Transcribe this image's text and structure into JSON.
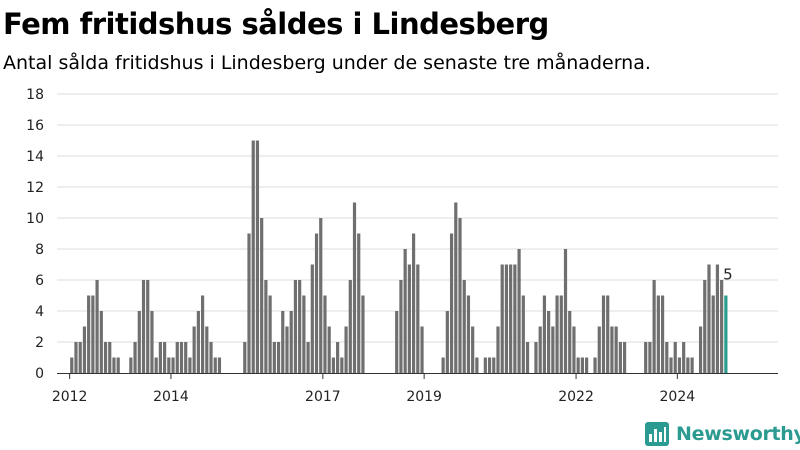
{
  "header": {
    "title": "Fem fritidshus såldes i Lindesberg",
    "subtitle": "Antal sålda fritidshus i Lindesberg under de senaste tre månaderna."
  },
  "brand": {
    "name": "Newsworthy",
    "icon": "newsworthy-logo-icon",
    "color": "#2b9b91"
  },
  "colors": {
    "bar": "#6f6f6f",
    "highlight": "#2a9d8f",
    "grid": "#dddddd",
    "axis": "#333333"
  },
  "chart_data": {
    "type": "bar",
    "title": "Fem fritidshus såldes i Lindesberg",
    "subtitle": "Antal sålda fritidshus i Lindesberg under de senaste tre månaderna.",
    "xlabel": "",
    "ylabel": "",
    "ylim": [
      0,
      18
    ],
    "yticks": [
      0,
      2,
      4,
      6,
      8,
      10,
      12,
      14,
      16,
      18
    ],
    "grid": true,
    "x_start": "2011-10",
    "x_end": "2025-02",
    "xticks": [
      {
        "label": "2012",
        "x": "2012-01"
      },
      {
        "label": "2014",
        "x": "2014-01"
      },
      {
        "label": "2017",
        "x": "2017-01"
      },
      {
        "label": "2019",
        "x": "2019-01"
      },
      {
        "label": "2022",
        "x": "2022-01"
      },
      {
        "label": "2024",
        "x": "2024-01"
      }
    ],
    "series": [
      {
        "values": [
          {
            "x": "2012-01",
            "y": 1
          },
          {
            "x": "2012-02",
            "y": 2
          },
          {
            "x": "2012-03",
            "y": 2
          },
          {
            "x": "2012-04",
            "y": 3
          },
          {
            "x": "2012-05",
            "y": 5
          },
          {
            "x": "2012-06",
            "y": 5
          },
          {
            "x": "2012-07",
            "y": 6
          },
          {
            "x": "2012-08",
            "y": 4
          },
          {
            "x": "2012-09",
            "y": 2
          },
          {
            "x": "2012-10",
            "y": 2
          },
          {
            "x": "2012-11",
            "y": 1
          },
          {
            "x": "2012-12",
            "y": 1
          },
          {
            "x": "2013-03",
            "y": 1
          },
          {
            "x": "2013-04",
            "y": 2
          },
          {
            "x": "2013-05",
            "y": 4
          },
          {
            "x": "2013-06",
            "y": 6
          },
          {
            "x": "2013-07",
            "y": 6
          },
          {
            "x": "2013-08",
            "y": 4
          },
          {
            "x": "2013-09",
            "y": 1
          },
          {
            "x": "2013-10",
            "y": 2
          },
          {
            "x": "2013-11",
            "y": 2
          },
          {
            "x": "2013-12",
            "y": 1
          },
          {
            "x": "2014-01",
            "y": 1
          },
          {
            "x": "2014-02",
            "y": 2
          },
          {
            "x": "2014-03",
            "y": 2
          },
          {
            "x": "2014-04",
            "y": 2
          },
          {
            "x": "2014-05",
            "y": 1
          },
          {
            "x": "2014-06",
            "y": 3
          },
          {
            "x": "2014-07",
            "y": 4
          },
          {
            "x": "2014-08",
            "y": 5
          },
          {
            "x": "2014-09",
            "y": 3
          },
          {
            "x": "2014-10",
            "y": 2
          },
          {
            "x": "2014-11",
            "y": 1
          },
          {
            "x": "2014-12",
            "y": 1
          },
          {
            "x": "2015-06",
            "y": 2
          },
          {
            "x": "2015-07",
            "y": 9
          },
          {
            "x": "2015-08",
            "y": 15
          },
          {
            "x": "2015-09",
            "y": 15
          },
          {
            "x": "2015-10",
            "y": 10
          },
          {
            "x": "2015-11",
            "y": 6
          },
          {
            "x": "2015-12",
            "y": 5
          },
          {
            "x": "2016-01",
            "y": 2
          },
          {
            "x": "2016-02",
            "y": 2
          },
          {
            "x": "2016-03",
            "y": 4
          },
          {
            "x": "2016-04",
            "y": 3
          },
          {
            "x": "2016-05",
            "y": 4
          },
          {
            "x": "2016-06",
            "y": 6
          },
          {
            "x": "2016-07",
            "y": 6
          },
          {
            "x": "2016-08",
            "y": 5
          },
          {
            "x": "2016-09",
            "y": 2
          },
          {
            "x": "2016-10",
            "y": 7
          },
          {
            "x": "2016-11",
            "y": 9
          },
          {
            "x": "2016-12",
            "y": 10
          },
          {
            "x": "2017-01",
            "y": 5
          },
          {
            "x": "2017-02",
            "y": 3
          },
          {
            "x": "2017-03",
            "y": 1
          },
          {
            "x": "2017-04",
            "y": 2
          },
          {
            "x": "2017-05",
            "y": 1
          },
          {
            "x": "2017-06",
            "y": 3
          },
          {
            "x": "2017-07",
            "y": 6
          },
          {
            "x": "2017-08",
            "y": 11
          },
          {
            "x": "2017-09",
            "y": 9
          },
          {
            "x": "2017-10",
            "y": 5
          },
          {
            "x": "2018-06",
            "y": 4
          },
          {
            "x": "2018-07",
            "y": 6
          },
          {
            "x": "2018-08",
            "y": 8
          },
          {
            "x": "2018-09",
            "y": 7
          },
          {
            "x": "2018-10",
            "y": 9
          },
          {
            "x": "2018-11",
            "y": 7
          },
          {
            "x": "2018-12",
            "y": 3
          },
          {
            "x": "2019-05",
            "y": 1
          },
          {
            "x": "2019-06",
            "y": 4
          },
          {
            "x": "2019-07",
            "y": 9
          },
          {
            "x": "2019-08",
            "y": 11
          },
          {
            "x": "2019-09",
            "y": 10
          },
          {
            "x": "2019-10",
            "y": 6
          },
          {
            "x": "2019-11",
            "y": 5
          },
          {
            "x": "2019-12",
            "y": 3
          },
          {
            "x": "2020-01",
            "y": 1
          },
          {
            "x": "2020-03",
            "y": 1
          },
          {
            "x": "2020-04",
            "y": 1
          },
          {
            "x": "2020-05",
            "y": 1
          },
          {
            "x": "2020-06",
            "y": 3
          },
          {
            "x": "2020-07",
            "y": 7
          },
          {
            "x": "2020-08",
            "y": 7
          },
          {
            "x": "2020-09",
            "y": 7
          },
          {
            "x": "2020-10",
            "y": 7
          },
          {
            "x": "2020-11",
            "y": 8
          },
          {
            "x": "2020-12",
            "y": 5
          },
          {
            "x": "2021-01",
            "y": 2
          },
          {
            "x": "2021-03",
            "y": 2
          },
          {
            "x": "2021-04",
            "y": 3
          },
          {
            "x": "2021-05",
            "y": 5
          },
          {
            "x": "2021-06",
            "y": 4
          },
          {
            "x": "2021-07",
            "y": 3
          },
          {
            "x": "2021-08",
            "y": 5
          },
          {
            "x": "2021-09",
            "y": 5
          },
          {
            "x": "2021-10",
            "y": 8
          },
          {
            "x": "2021-11",
            "y": 4
          },
          {
            "x": "2021-12",
            "y": 3
          },
          {
            "x": "2022-01",
            "y": 1
          },
          {
            "x": "2022-02",
            "y": 1
          },
          {
            "x": "2022-03",
            "y": 1
          },
          {
            "x": "2022-05",
            "y": 1
          },
          {
            "x": "2022-06",
            "y": 3
          },
          {
            "x": "2022-07",
            "y": 5
          },
          {
            "x": "2022-08",
            "y": 5
          },
          {
            "x": "2022-09",
            "y": 3
          },
          {
            "x": "2022-10",
            "y": 3
          },
          {
            "x": "2022-11",
            "y": 2
          },
          {
            "x": "2022-12",
            "y": 2
          },
          {
            "x": "2023-05",
            "y": 2
          },
          {
            "x": "2023-06",
            "y": 2
          },
          {
            "x": "2023-07",
            "y": 6
          },
          {
            "x": "2023-08",
            "y": 5
          },
          {
            "x": "2023-09",
            "y": 5
          },
          {
            "x": "2023-10",
            "y": 2
          },
          {
            "x": "2023-11",
            "y": 1
          },
          {
            "x": "2023-12",
            "y": 2
          },
          {
            "x": "2024-01",
            "y": 1
          },
          {
            "x": "2024-02",
            "y": 2
          },
          {
            "x": "2024-03",
            "y": 1
          },
          {
            "x": "2024-04",
            "y": 1
          },
          {
            "x": "2024-06",
            "y": 3
          },
          {
            "x": "2024-07",
            "y": 6
          },
          {
            "x": "2024-08",
            "y": 7
          },
          {
            "x": "2024-09",
            "y": 5
          },
          {
            "x": "2024-10",
            "y": 7
          },
          {
            "x": "2024-11",
            "y": 6
          },
          {
            "x": "2024-12",
            "y": 5
          }
        ]
      }
    ],
    "highlight": {
      "x": "2024-12",
      "y": 5,
      "label": "5"
    }
  }
}
